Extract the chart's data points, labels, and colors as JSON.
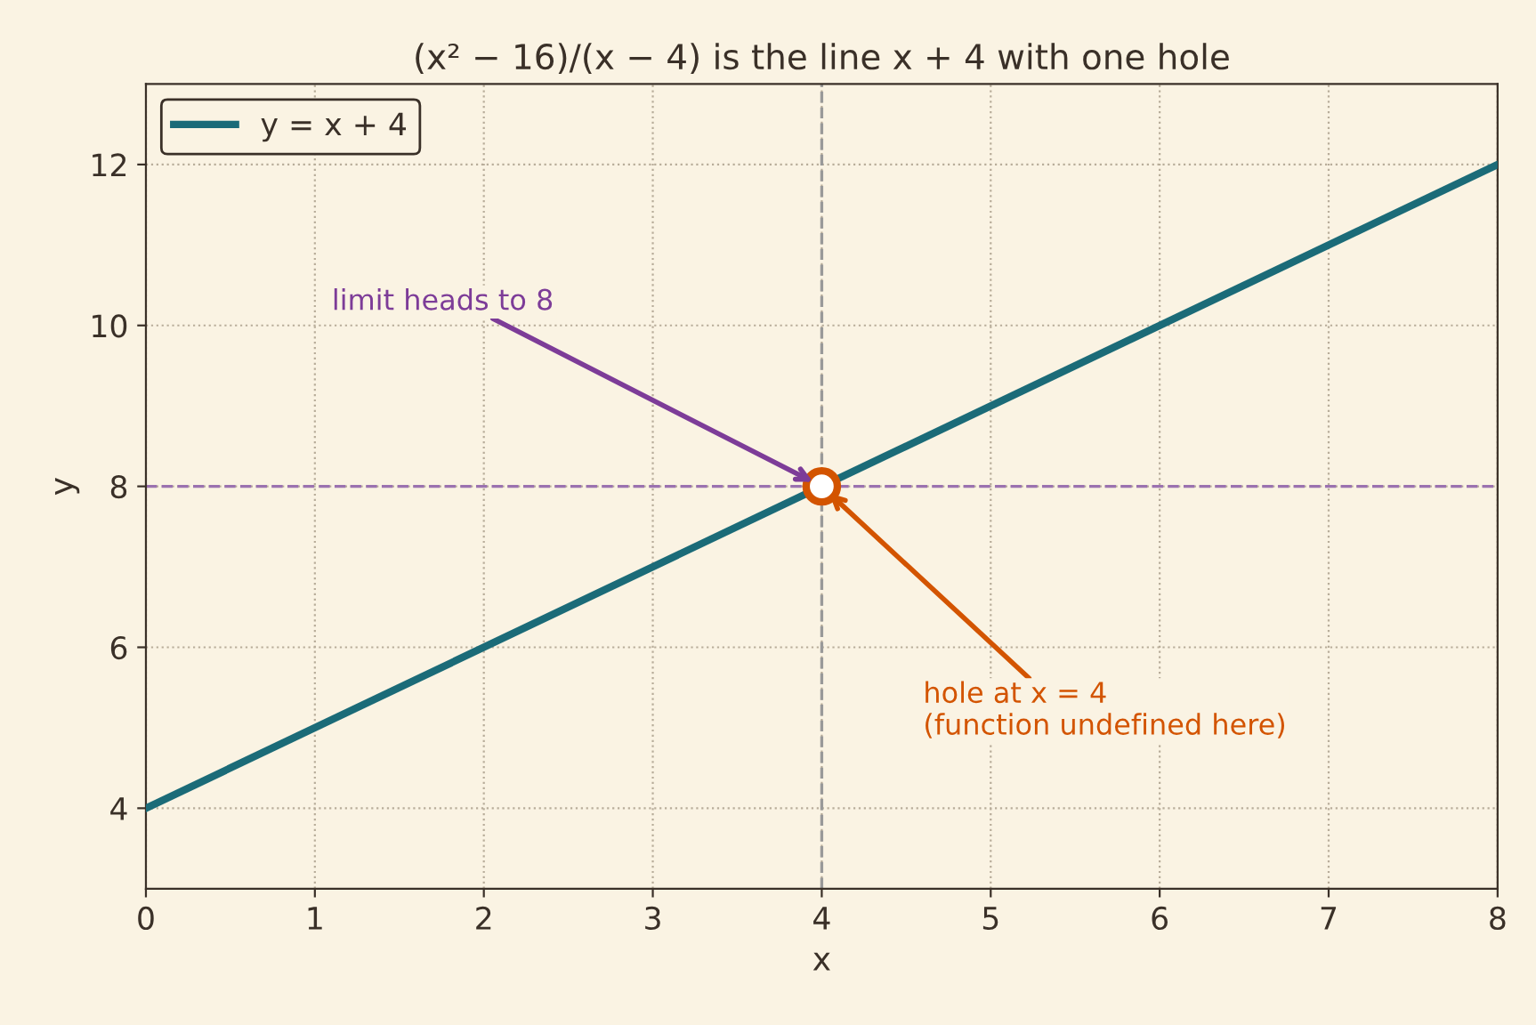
{
  "chart_data": {
    "type": "line",
    "title": "(x² − 16)/(x − 4) is the line x + 4 with one hole",
    "xlabel": "x",
    "ylabel": "y",
    "series": [
      {
        "name": "y = x + 4",
        "color": "#1b6b78",
        "x": [
          0,
          8
        ],
        "values": [
          4,
          12
        ]
      },
      {
        "type": "scatter",
        "color": "#d35400",
        "x": [
          4
        ],
        "values": [
          8
        ],
        "marker": "circle"
      }
    ],
    "xlim": [
      0,
      8
    ],
    "xticks": [
      0,
      1,
      2,
      3,
      4,
      5,
      6,
      7,
      8
    ],
    "ylim": [
      3,
      13
    ],
    "yticks": [
      4,
      6,
      8,
      10,
      12
    ],
    "ref_lines": [
      {
        "axis": "x",
        "value": 4,
        "color": "#999999",
        "line_style": "dashed"
      },
      {
        "axis": "y",
        "value": 8,
        "color": "#9b72b0",
        "line_style": "dashed"
      }
    ],
    "annotations": [
      {
        "text": "limit heads to 8",
        "x": 4,
        "y": 8
      },
      {
        "text": "hole at x = 4\n(function undefined here)",
        "x": 4,
        "y": 8
      }
    ],
    "grid": true,
    "legend": "top left",
    "marker": "none",
    "line_style": "solid"
  }
}
